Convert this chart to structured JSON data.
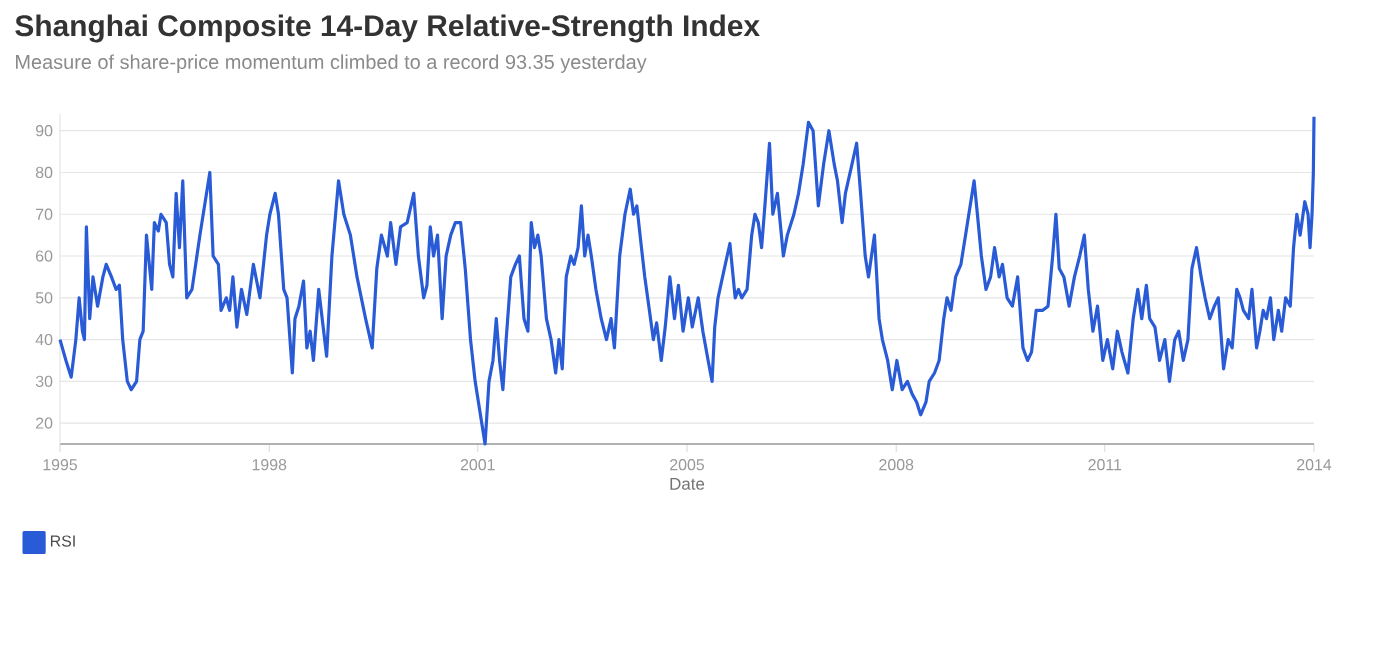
{
  "chart_data": {
    "type": "line",
    "title": "Shanghai Composite 14-Day Relative-Strength Index",
    "subtitle": "Measure of share-price momentum climbed to a record 93.35 yesterday",
    "xlabel": "Date",
    "x": [
      1995.0,
      1995.09,
      1995.17,
      1995.24,
      1995.29,
      1995.34,
      1995.37,
      1995.4,
      1995.45,
      1995.5,
      1995.57,
      1995.65,
      1995.7,
      1995.78,
      1995.85,
      1995.9,
      1995.95,
      1996.02,
      1996.08,
      1996.16,
      1996.21,
      1996.26,
      1996.31,
      1996.39,
      1996.43,
      1996.49,
      1996.53,
      1996.61,
      1996.66,
      1996.71,
      1996.76,
      1996.81,
      1996.86,
      1996.92,
      1997.0,
      1997.12,
      1997.27,
      1997.32,
      1997.4,
      1997.44,
      1997.52,
      1997.57,
      1997.62,
      1997.68,
      1997.75,
      1997.83,
      1997.93,
      1998.03,
      1998.13,
      1998.18,
      1998.26,
      1998.31,
      1998.39,
      1998.44,
      1998.52,
      1998.56,
      1998.62,
      1998.69,
      1998.74,
      1998.79,
      1998.84,
      1998.92,
      1999.04,
      1999.12,
      1999.22,
      1999.3,
      1999.4,
      1999.5,
      1999.63,
      1999.73,
      1999.8,
      1999.87,
      1999.96,
      2000.01,
      2000.09,
      2000.16,
      2000.26,
      2000.36,
      2000.43,
      2000.51,
      2000.56,
      2000.61,
      2000.66,
      2000.72,
      2000.79,
      2000.85,
      2000.92,
      2000.99,
      2001.07,
      2001.14,
      2001.22,
      2001.29,
      2001.44,
      2001.5,
      2001.56,
      2001.61,
      2001.66,
      2001.71,
      2001.76,
      2001.83,
      2001.9,
      2001.96,
      2002.03,
      2002.09,
      2002.14,
      2002.19,
      2002.24,
      2002.29,
      2002.37,
      2002.44,
      2002.51,
      2002.56,
      2002.61,
      2002.67,
      2002.74,
      2002.79,
      2002.85,
      2002.9,
      2002.95,
      2003.0,
      2003.05,
      2003.12,
      2003.2,
      2003.28,
      2003.35,
      2003.4,
      2003.48,
      2003.56,
      2003.64,
      2003.69,
      2003.74,
      2003.81,
      2003.86,
      2003.93,
      2003.99,
      2004.04,
      2004.11,
      2004.17,
      2004.24,
      2004.31,
      2004.37,
      2004.44,
      2004.52,
      2004.58,
      2004.67,
      2004.74,
      2004.82,
      2004.88,
      2004.92,
      2004.97,
      2005.08,
      2005.15,
      2005.23,
      2005.28,
      2005.33,
      2005.41,
      2005.48,
      2005.53,
      2005.58,
      2005.63,
      2005.68,
      2005.75,
      2005.8,
      2005.87,
      2005.96,
      2006.02,
      2006.12,
      2006.19,
      2006.26,
      2006.34,
      2006.41,
      2006.49,
      2006.57,
      2006.65,
      2006.73,
      2006.78,
      2006.85,
      2006.9,
      2007.0,
      2007.07,
      2007.13,
      2007.2,
      2007.25,
      2007.34,
      2007.41,
      2007.46,
      2007.54,
      2007.61,
      2007.68,
      2007.76,
      2007.84,
      2007.91,
      2007.98,
      2008.04,
      2008.12,
      2008.17,
      2008.25,
      2008.32,
      2008.39,
      2008.44,
      2008.5,
      2008.57,
      2008.65,
      2008.72,
      2008.77,
      2008.85,
      2008.9,
      2008.96,
      2009.03,
      2009.1,
      2009.16,
      2009.23,
      2009.28,
      2009.35,
      2009.43,
      2009.51,
      2009.59,
      2009.66,
      2009.72,
      2009.79,
      2009.89,
      2009.97,
      2010.04,
      2010.09,
      2010.14,
      2010.21,
      2010.29,
      2010.37,
      2010.45,
      2010.52,
      2010.58,
      2010.65,
      2010.72,
      2010.8,
      2010.87,
      2010.95,
      2011.02,
      2011.09,
      2011.18,
      2011.26,
      2011.33,
      2011.39,
      2011.46,
      2011.51,
      2011.59,
      2011.66,
      2011.74,
      2011.81,
      2011.89,
      2011.95,
      2012.02,
      2012.09,
      2012.15,
      2012.22,
      2012.29,
      2012.35,
      2012.42,
      2012.49,
      2012.55,
      2012.63,
      2012.7,
      2012.76,
      2012.83,
      2012.88,
      2012.93,
      2013.01,
      2013.06,
      2013.13,
      2013.18,
      2013.23,
      2013.28,
      2013.34,
      2013.39,
      2013.46,
      2013.51,
      2013.57,
      2013.64,
      2013.69,
      2013.74,
      2013.79,
      2013.86,
      2013.91,
      2013.94,
      2013.97,
      2013.99,
      2014.0
    ],
    "series": [
      {
        "name": "RSI",
        "color": "#2a5bd7",
        "values": [
          40,
          35,
          31,
          40,
          50,
          42,
          40,
          67,
          45,
          55,
          48,
          55,
          58,
          55,
          52,
          53,
          40,
          30,
          28,
          30,
          40,
          42,
          65,
          52,
          68,
          66,
          70,
          68,
          58,
          55,
          75,
          62,
          78,
          50,
          52,
          65,
          80,
          60,
          58,
          47,
          50,
          47,
          55,
          43,
          52,
          46,
          58,
          50,
          65,
          70,
          75,
          70,
          52,
          50,
          32,
          45,
          48,
          54,
          38,
          42,
          35,
          52,
          36,
          60,
          78,
          70,
          65,
          55,
          45,
          38,
          57,
          65,
          60,
          68,
          58,
          67,
          68,
          75,
          60,
          50,
          53,
          67,
          60,
          65,
          45,
          60,
          65,
          68,
          68,
          57,
          40,
          30,
          15,
          30,
          35,
          45,
          35,
          28,
          40,
          55,
          58,
          60,
          45,
          42,
          68,
          62,
          65,
          60,
          45,
          40,
          32,
          40,
          33,
          55,
          60,
          58,
          62,
          72,
          60,
          65,
          60,
          52,
          45,
          40,
          45,
          38,
          60,
          70,
          76,
          70,
          72,
          62,
          55,
          47,
          40,
          44,
          35,
          43,
          55,
          45,
          53,
          42,
          50,
          43,
          50,
          42,
          35,
          30,
          43,
          50,
          58,
          63,
          50,
          52,
          50,
          52,
          65,
          70,
          68,
          62,
          72,
          87,
          70,
          75,
          60,
          65,
          70,
          75,
          82,
          92,
          90,
          72,
          82,
          90,
          82,
          78,
          68,
          75,
          82,
          87,
          75,
          60,
          55,
          65,
          45,
          40,
          35,
          28,
          35,
          28,
          30,
          27,
          25,
          22,
          25,
          30,
          32,
          35,
          45,
          50,
          47,
          55,
          58,
          65,
          70,
          78,
          70,
          60,
          52,
          55,
          62,
          55,
          58,
          50,
          48,
          55,
          38,
          35,
          37,
          47,
          47,
          48,
          60,
          70,
          57,
          55,
          48,
          55,
          60,
          65,
          52,
          42,
          48,
          35,
          40,
          33,
          42,
          37,
          32,
          45,
          52,
          45,
          53,
          45,
          43,
          35,
          40,
          30,
          40,
          42,
          35,
          40,
          57,
          62,
          55,
          50,
          45,
          48,
          50,
          33,
          40,
          38,
          52,
          50,
          47,
          45,
          52,
          38,
          42,
          47,
          45,
          50,
          40,
          47,
          42,
          50,
          48,
          62,
          70,
          65,
          73,
          70,
          62,
          70,
          80,
          93.35
        ]
      }
    ],
    "xlim": [
      1995,
      2014
    ],
    "ylim": [
      15,
      94
    ],
    "xticks": [
      {
        "value": 1995,
        "label": "1995"
      },
      {
        "value": 1998.17,
        "label": "1998"
      },
      {
        "value": 2001.33,
        "label": "2001"
      },
      {
        "value": 2004.5,
        "label": "2005"
      },
      {
        "value": 2007.67,
        "label": "2008"
      },
      {
        "value": 2010.83,
        "label": "2011"
      },
      {
        "value": 2014,
        "label": "2014"
      }
    ],
    "yticks": [
      20,
      30,
      40,
      50,
      60,
      70,
      80,
      90
    ],
    "grid": "y",
    "legend": "bottom left"
  }
}
